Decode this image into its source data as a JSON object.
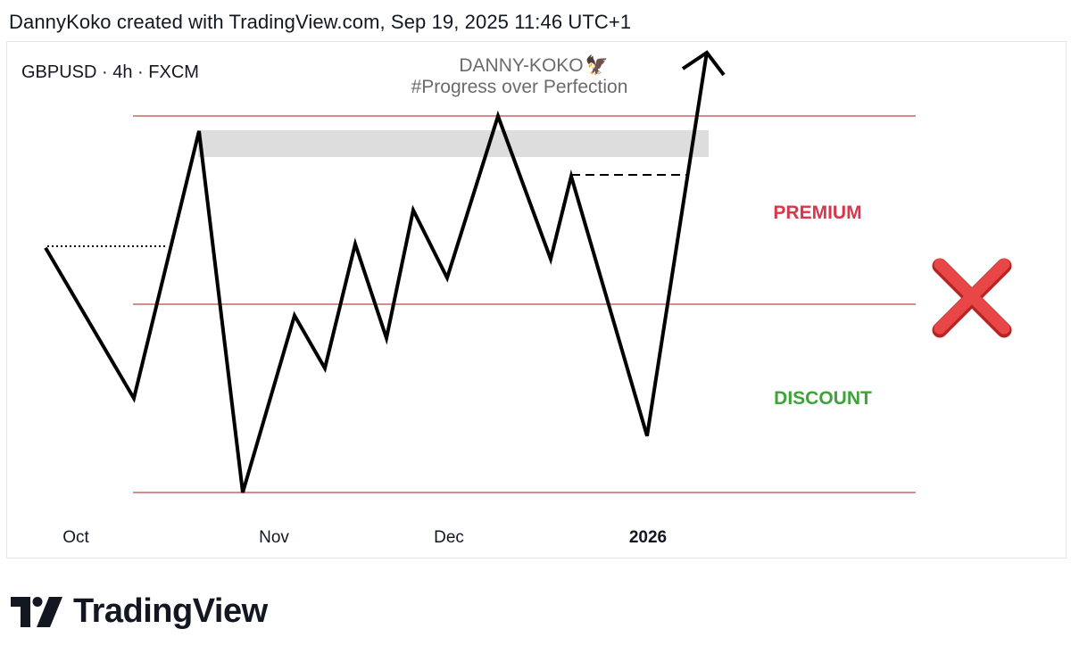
{
  "header": {
    "created_text": "DannyKoko created with TradingView.com, Sep 19, 2025 11:46 UTC+1"
  },
  "chart_data": {
    "type": "line",
    "symbol": "GBPUSD",
    "interval": "4h",
    "exchange": "FXCM",
    "symbol_line": "GBPUSD · 4h · FXCM",
    "watermark": {
      "name": "DANNY-KOKO",
      "emoji": "🦅",
      "tagline": "#Progress over Perfection"
    },
    "x_ticks": [
      {
        "label": "Oct",
        "bold": false
      },
      {
        "label": "Nov",
        "bold": false
      },
      {
        "label": "Dec",
        "bold": false
      },
      {
        "label": "2026",
        "bold": true
      }
    ],
    "zones": {
      "premium_label": "PREMIUM",
      "discount_label": "DISCOUNT",
      "premium_color": "#d9364a",
      "discount_color": "#3fa33a",
      "level_line_color": "#d98a8a"
    },
    "levels": {
      "range_high": 100,
      "equilibrium": 50,
      "range_low": 0
    },
    "series": [
      {
        "values": [
          65,
          25,
          96,
          0,
          47,
          33,
          66,
          41,
          75,
          57,
          100,
          62,
          84,
          15,
          117
        ]
      }
    ],
    "final_move": "arrow up",
    "invalid_mark_color": "#e03a3a"
  },
  "colors": {
    "text": "#131722",
    "line": "#000000",
    "highlight_box": "#dddddd"
  }
}
